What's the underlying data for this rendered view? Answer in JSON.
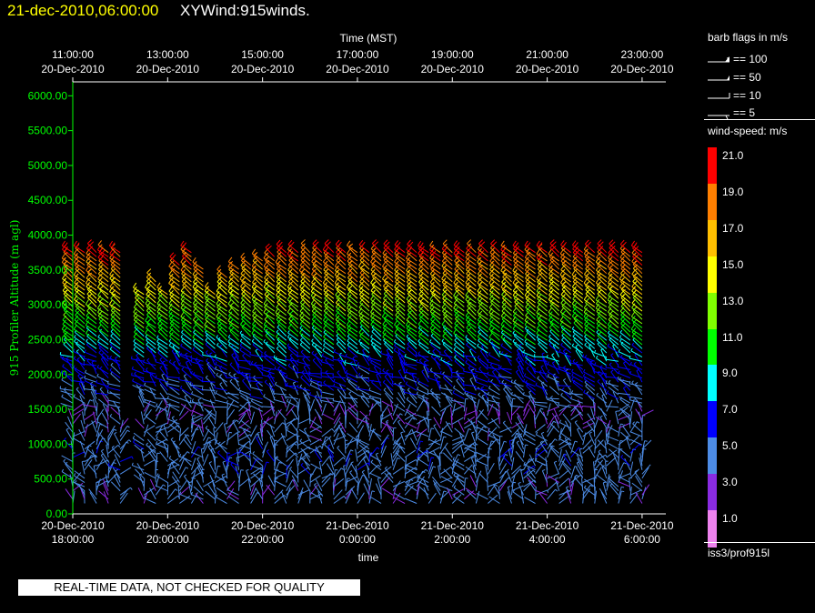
{
  "header": {
    "date": "21-dec-2010,06:00:00",
    "title": "XYWind:915winds."
  },
  "quality_note": "REAL-TIME DATA, NOT CHECKED FOR QUALITY",
  "legend": {
    "barb_title": "barb flags in m/s",
    "barbs": [
      {
        "label": "== 100",
        "kind": "flag-wide"
      },
      {
        "label": "== 50",
        "kind": "flag"
      },
      {
        "label": "== 10",
        "kind": "full"
      },
      {
        "label": "== 5",
        "kind": "half"
      }
    ],
    "windspeed_title": "wind-speed: m/s",
    "colorbar": [
      {
        "label": "21.0",
        "color": "#ff0000"
      },
      {
        "label": "19.0",
        "color": "#ff7f00"
      },
      {
        "label": "17.0",
        "color": "#ffbf00"
      },
      {
        "label": "15.0",
        "color": "#ffff00"
      },
      {
        "label": "13.0",
        "color": "#80ff00"
      },
      {
        "label": "11.0",
        "color": "#00ff00"
      },
      {
        "label": "9.0",
        "color": "#00ffff"
      },
      {
        "label": "7.0",
        "color": "#0000ff"
      },
      {
        "label": "5.0",
        "color": "#4d8ce6"
      },
      {
        "label": "3.0",
        "color": "#8a2be2"
      },
      {
        "label": "1.0",
        "color": "#ee82ee"
      }
    ],
    "station": "iss3/prof915l"
  },
  "chart_data": {
    "type": "scatter",
    "subtype": "wind-barb time-height",
    "ylabel": "915 Profiler Altitude (m agl)",
    "ylim": [
      0,
      6200
    ],
    "yticks": [
      "0.00",
      "500.00",
      "1000.00",
      "1500.00",
      "2000.00",
      "2500.00",
      "3000.00",
      "3500.00",
      "4000.00",
      "4500.00",
      "5000.00",
      "5500.00",
      "6000.00"
    ],
    "xlabel_bottom": "time",
    "xlabel_top": "Time (MST)",
    "x_range_hours": [
      0,
      12.5
    ],
    "bottom_ticks": [
      {
        "h": 0,
        "l1": "20-Dec-2010",
        "l2": "18:00:00"
      },
      {
        "h": 2,
        "l1": "20-Dec-2010",
        "l2": "20:00:00"
      },
      {
        "h": 4,
        "l1": "20-Dec-2010",
        "l2": "22:00:00"
      },
      {
        "h": 6,
        "l1": "21-Dec-2010",
        "l2": "0:00:00"
      },
      {
        "h": 8,
        "l1": "21-Dec-2010",
        "l2": "2:00:00"
      },
      {
        "h": 10,
        "l1": "21-Dec-2010",
        "l2": "4:00:00"
      },
      {
        "h": 12,
        "l1": "21-Dec-2010",
        "l2": "6:00:00"
      }
    ],
    "top_ticks": [
      {
        "h": 0,
        "l1": "11:00:00",
        "l2": "20-Dec-2010"
      },
      {
        "h": 2,
        "l1": "13:00:00",
        "l2": "20-Dec-2010"
      },
      {
        "h": 4,
        "l1": "15:00:00",
        "l2": "20-Dec-2010"
      },
      {
        "h": 6,
        "l1": "17:00:00",
        "l2": "20-Dec-2010"
      },
      {
        "h": 8,
        "l1": "19:00:00",
        "l2": "20-Dec-2010"
      },
      {
        "h": 10,
        "l1": "21:00:00",
        "l2": "20-Dec-2010"
      },
      {
        "h": 12,
        "l1": "23:00:00",
        "l2": "20-Dec-2010"
      }
    ],
    "profile_times_hours": [
      0,
      0.25,
      0.5,
      0.75,
      1.0,
      1.5,
      1.75,
      2.0,
      2.25,
      2.5,
      2.75,
      3.0,
      3.25,
      3.5,
      3.75,
      4.0,
      4.25,
      4.5,
      4.75,
      5.0,
      5.25,
      5.5,
      5.75,
      6.0,
      6.25,
      6.5,
      6.75,
      7.0,
      7.25,
      7.5,
      7.75,
      8.0,
      8.25,
      8.5,
      8.75,
      9.0,
      9.25,
      9.5,
      9.75,
      10.0,
      10.25,
      10.5,
      10.75,
      11.0,
      11.25,
      11.5,
      11.75,
      12.0
    ],
    "profile_tops_m": [
      3800,
      3800,
      3800,
      3750,
      3800,
      3150,
      3350,
      3200,
      3600,
      3800,
      3550,
      3200,
      3400,
      3550,
      3600,
      3650,
      3700,
      3750,
      3750,
      3750,
      3800,
      3750,
      3800,
      3800,
      3800,
      3800,
      3800,
      3750,
      3750,
      3750,
      3800,
      3800,
      3800,
      3800,
      3800,
      3800,
      3800,
      3800,
      3800,
      3800,
      3800,
      3800,
      3800,
      3800,
      3800,
      3800,
      3800,
      3800
    ],
    "speed_profile_by_height": [
      {
        "z_m": 200,
        "speed_ms": 4.5
      },
      {
        "z_m": 800,
        "speed_ms": 5.5
      },
      {
        "z_m": 1400,
        "speed_ms": 4.0
      },
      {
        "z_m": 1800,
        "speed_ms": 6.0
      },
      {
        "z_m": 2200,
        "speed_ms": 7.5
      },
      {
        "z_m": 2600,
        "speed_ms": 11.0
      },
      {
        "z_m": 3000,
        "speed_ms": 14.0
      },
      {
        "z_m": 3400,
        "speed_ms": 18.0
      },
      {
        "z_m": 3800,
        "speed_ms": 21.0
      }
    ],
    "barb_vertical_spacing_m": 60,
    "grid": false
  }
}
